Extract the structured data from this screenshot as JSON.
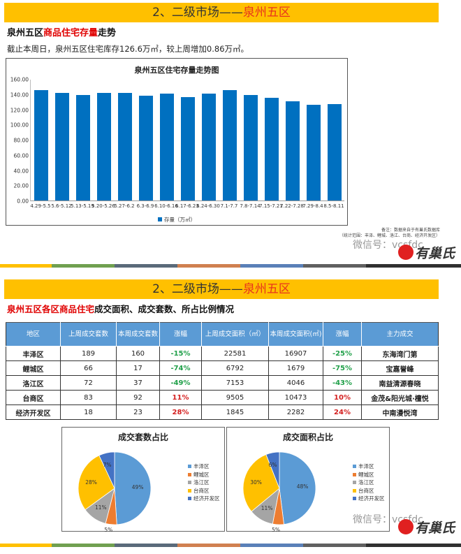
{
  "slide1": {
    "banner": {
      "prefix": "2、二级市场——",
      "highlight": "泉州五区"
    },
    "subtitle": {
      "part1": "泉州五区",
      "part2_red": "商品住宅存量",
      "part3": "走势"
    },
    "description": "截止本周日，泉州五区住宅库存126.6万㎡，较上周增加0.86万㎡。",
    "footnote": {
      "line1": "备注：数据来自于有巢氏数据库",
      "line2": "（统计范围：丰泽、鲤城、洛江、台商、经济开发区）"
    }
  },
  "slide2": {
    "banner": {
      "prefix": "2、二级市场——",
      "highlight": "泉州五区"
    },
    "subtitle": {
      "part1_red": "泉州五区各区商品住宅",
      "part2": "成交面积、成交套数、所占比例情况"
    },
    "table": {
      "headers": [
        "地区",
        "上周成交套数",
        "本周成交套数",
        "涨幅",
        "上周成交面积（㎡）",
        "本周成交面积(㎡)",
        "涨幅",
        "主力成交"
      ],
      "rows": [
        {
          "region": "丰泽区",
          "last_units": "189",
          "this_units": "160",
          "units_change": "-15%",
          "last_area": "22581",
          "this_area": "16907",
          "area_change": "-25%",
          "main": "东海湾门第"
        },
        {
          "region": "鲤城区",
          "last_units": "66",
          "this_units": "17",
          "units_change": "-74%",
          "last_area": "6792",
          "this_area": "1679",
          "area_change": "-75%",
          "main": "宝嘉誉峰"
        },
        {
          "region": "洛江区",
          "last_units": "72",
          "this_units": "37",
          "units_change": "-49%",
          "last_area": "7153",
          "this_area": "4046",
          "area_change": "-43%",
          "main": "南益清源春晓"
        },
        {
          "region": "台商区",
          "last_units": "83",
          "this_units": "92",
          "units_change": "11%",
          "last_area": "9505",
          "this_area": "10473",
          "area_change": "10%",
          "main": "金茂&阳光城·檀悦"
        },
        {
          "region": "经济开发区",
          "last_units": "18",
          "this_units": "23",
          "units_change": "28%",
          "last_area": "1845",
          "this_area": "2282",
          "area_change": "24%",
          "main": "中南漫悦湾"
        }
      ]
    }
  },
  "watermark": {
    "wechat": "微信号：vcsfdc",
    "brand": "有巢氏"
  },
  "colors": {
    "banner": "#ffc000",
    "highlight": "#e8331c",
    "bar": "#0070c0",
    "table_header": "#5b9bd5",
    "negative": "#21a04a",
    "positive": "#d42020"
  },
  "chart_data": [
    {
      "type": "bar",
      "title": "泉州五区住宅存量走势图",
      "categories": [
        "4.29-5.5",
        "5.6-5.12",
        "5.13-5.19",
        "5.20-5.26",
        "5.27-6.2",
        "6.3-6.9",
        "6.10-6.16",
        "6.17-6.23",
        "6.24-6.30",
        "7.1-7.7",
        "7.8-7.14",
        "7.15-7.21",
        "7.22-7.28",
        "7.29-8.4",
        "8.5-8.11"
      ],
      "series": [
        {
          "name": "存量（万㎡）",
          "values": [
            145,
            142,
            139,
            142,
            142,
            138,
            141,
            136,
            141,
            145,
            139,
            135,
            131,
            125.7,
            126.6
          ]
        }
      ],
      "yticks": [
        "160.00",
        "140.00",
        "120.00",
        "100.00",
        "80.00",
        "60.00",
        "40.00",
        "20.00",
        "0.00"
      ],
      "ylim": [
        0,
        160
      ],
      "legend": "存量（万㎡）",
      "legend_position": "bottom",
      "xlabel": "",
      "ylabel": ""
    },
    {
      "type": "pie",
      "title": "成交套数占比",
      "categories": [
        "丰泽区",
        "鲤城区",
        "洛江区",
        "台商区",
        "经济开发区"
      ],
      "values": [
        49,
        5,
        11,
        28,
        7
      ],
      "labels": [
        "49%",
        "5%",
        "11%",
        "28%",
        "7%"
      ],
      "colors": [
        "#5b9bd5",
        "#ed7d31",
        "#a5a5a5",
        "#ffc000",
        "#4472c4"
      ],
      "legend_position": "right"
    },
    {
      "type": "pie",
      "title": "成交面积占比",
      "categories": [
        "丰泽区",
        "鲤城区",
        "洛江区",
        "台商区",
        "经济开发区"
      ],
      "values": [
        48,
        5,
        11,
        30,
        6
      ],
      "labels": [
        "48%",
        "5%",
        "11%",
        "30%",
        "6%"
      ],
      "colors": [
        "#5b9bd5",
        "#ed7d31",
        "#a5a5a5",
        "#ffc000",
        "#4472c4"
      ],
      "legend_position": "right"
    }
  ]
}
